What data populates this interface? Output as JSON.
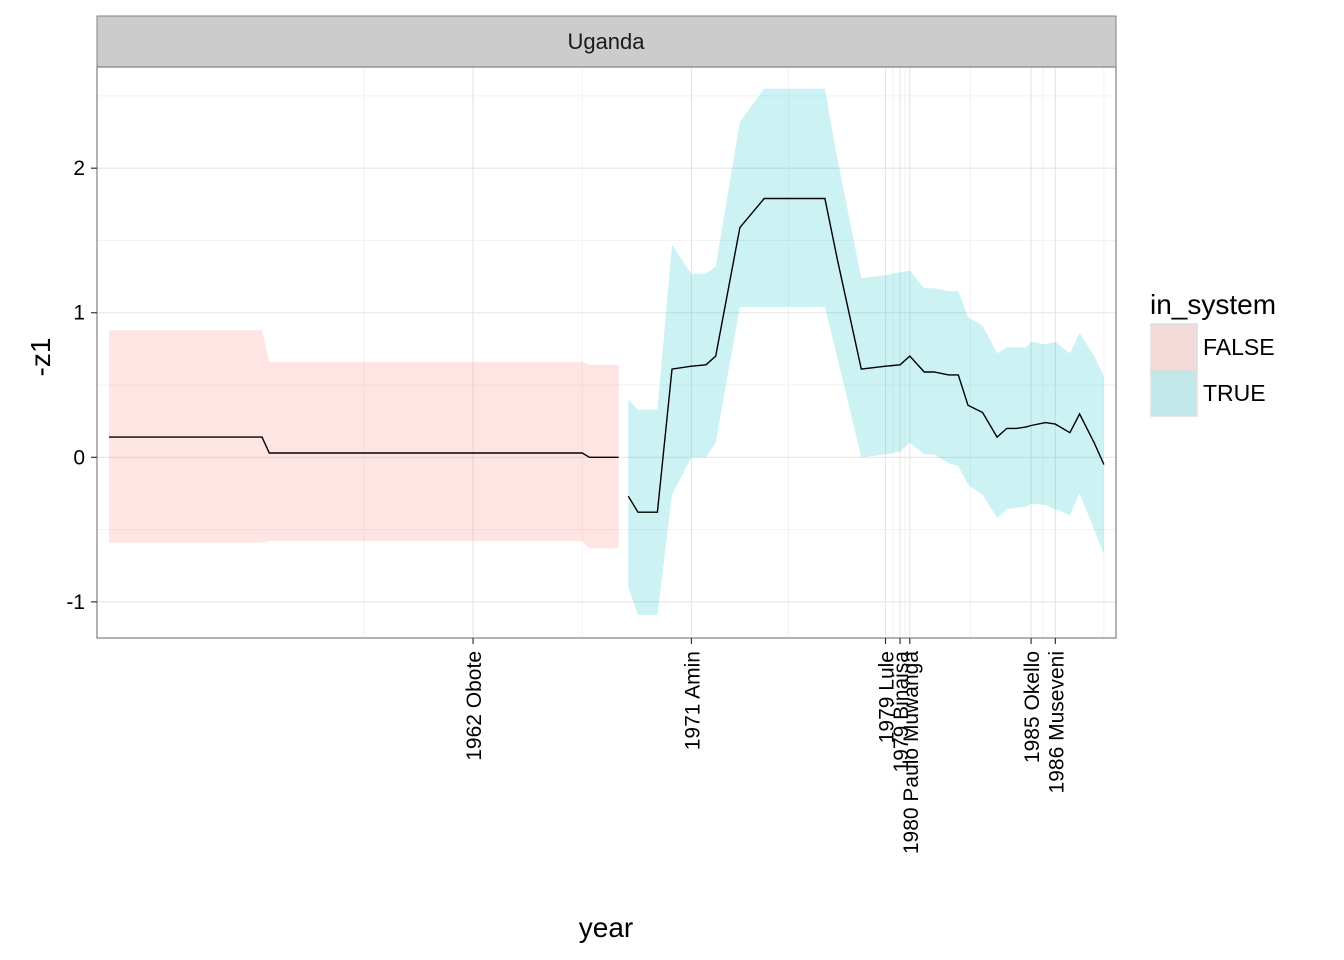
{
  "chart_data": {
    "type": "line",
    "facet_label": "Uganda",
    "xlabel": "year",
    "ylabel": "-z1",
    "xlim": [
      1946.5,
      1988.5
    ],
    "ylim": [
      -1.25,
      2.7
    ],
    "y_ticks": [
      -1,
      0,
      1,
      2
    ],
    "y_tick_labels": [
      "-1",
      "0",
      "1",
      "2"
    ],
    "x_ticks": [
      1962,
      1971,
      1979,
      1979.6,
      1980,
      1985,
      1986
    ],
    "x_tick_labels": [
      "1962 Obote",
      "1971 Amin",
      "1979 Lule",
      "1979 Binaisa",
      "1980 Paulo Muwanga",
      "1985 Okello",
      "1986 Museveni"
    ],
    "grid": true,
    "legend": {
      "title": "in_system",
      "position": "right",
      "entries": [
        {
          "label": "FALSE",
          "color": "#F8766D"
        },
        {
          "label": "TRUE",
          "color": "#00BFC4"
        }
      ]
    },
    "series": [
      {
        "name": "FALSE",
        "color": "#F8766D",
        "x": [
          1947.0,
          1953.3,
          1953.6,
          1966.5,
          1966.8,
          1968.0
        ],
        "y": [
          0.14,
          0.14,
          0.03,
          0.03,
          0.0,
          0.0
        ],
        "lower": [
          -0.59,
          -0.59,
          -0.58,
          -0.58,
          -0.63,
          -0.63
        ],
        "upper": [
          0.88,
          0.88,
          0.66,
          0.66,
          0.64,
          0.64
        ]
      },
      {
        "name": "TRUE",
        "color": "#00BFC4",
        "x": [
          1968.4,
          1968.8,
          1969.6,
          1970.2,
          1971.0,
          1971.6,
          1972.0,
          1973.0,
          1974.0,
          1975.2,
          1976.0,
          1976.5,
          1977.0,
          1978.0,
          1979.0,
          1979.6,
          1980.0,
          1980.6,
          1981.0,
          1981.6,
          1982.0,
          1982.4,
          1983.0,
          1983.6,
          1984.0,
          1984.4,
          1984.8,
          1985.0,
          1985.6,
          1986.0,
          1986.6,
          1987.0,
          1987.6,
          1988.0
        ],
        "y": [
          -0.27,
          -0.38,
          -0.38,
          0.61,
          0.63,
          0.64,
          0.7,
          1.59,
          1.79,
          1.79,
          1.79,
          1.79,
          1.38,
          0.61,
          0.63,
          0.64,
          0.7,
          0.59,
          0.59,
          0.57,
          0.57,
          0.36,
          0.31,
          0.14,
          0.2,
          0.2,
          0.21,
          0.22,
          0.24,
          0.23,
          0.17,
          0.3,
          0.1,
          -0.05
        ],
        "lower": [
          -0.9,
          -1.09,
          -1.09,
          -0.26,
          0.0,
          0.0,
          0.1,
          1.04,
          1.04,
          1.04,
          1.04,
          1.04,
          0.7,
          0.0,
          0.02,
          0.04,
          0.1,
          0.02,
          0.02,
          -0.04,
          -0.06,
          -0.19,
          -0.26,
          -0.42,
          -0.36,
          -0.35,
          -0.34,
          -0.32,
          -0.33,
          -0.36,
          -0.4,
          -0.25,
          -0.5,
          -0.67
        ],
        "upper": [
          0.4,
          0.33,
          0.33,
          1.47,
          1.27,
          1.27,
          1.32,
          2.32,
          2.55,
          2.55,
          2.55,
          2.55,
          2.08,
          1.24,
          1.26,
          1.28,
          1.29,
          1.17,
          1.17,
          1.15,
          1.15,
          0.97,
          0.91,
          0.72,
          0.76,
          0.76,
          0.76,
          0.8,
          0.78,
          0.8,
          0.72,
          0.86,
          0.7,
          0.56
        ]
      }
    ]
  }
}
